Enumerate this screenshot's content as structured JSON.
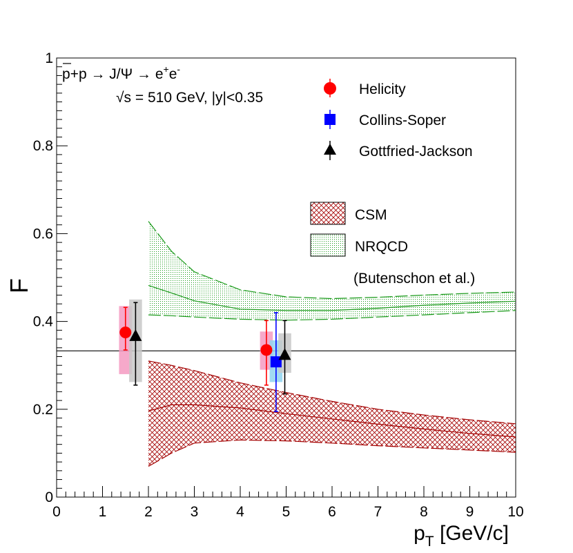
{
  "chart_data": {
    "type": "scatter",
    "xlabel": "p",
    "xlabel_sub": "T",
    "xlabel_unit": "[GeV/c]",
    "ylabel": "F",
    "xlim": [
      0,
      10
    ],
    "ylim": [
      0,
      1
    ],
    "x_ticks": [
      "0",
      "1",
      "2",
      "3",
      "4",
      "5",
      "6",
      "7",
      "8",
      "9",
      "10"
    ],
    "y_ticks": [
      {
        "v": 0,
        "label": "0"
      },
      {
        "v": 0.2,
        "label": "0.2"
      },
      {
        "v": 0.4,
        "label": "0.4"
      },
      {
        "v": 0.6,
        "label": "0.6"
      },
      {
        "v": 0.8,
        "label": "0.8"
      },
      {
        "v": 1,
        "label": "1"
      }
    ],
    "reference_line": 0.333,
    "process": {
      "reaction_pre": "p+p → J/Ψ → e",
      "sup1": "+",
      "e2": "e",
      "sup2": "-"
    },
    "energy_text": "√s = 510 GeV, |y|<0.35",
    "series": [
      {
        "name": "Helicity",
        "color": "#ff0000",
        "box_color": "#f49ac1",
        "marker": "circle",
        "points": [
          {
            "x": 1.5,
            "y": 0.375,
            "err_lo": 0.335,
            "err_hi": 0.432,
            "sys_lo": 0.28,
            "sys_hi": 0.435
          },
          {
            "x": 4.57,
            "y": 0.335,
            "err_lo": 0.255,
            "err_hi": 0.402,
            "sys_lo": 0.29,
            "sys_hi": 0.377
          }
        ]
      },
      {
        "name": "Collins-Soper",
        "color": "#0000ff",
        "box_color": "#8fd3f0",
        "marker": "square",
        "points": [
          {
            "x": 4.78,
            "y": 0.308,
            "err_lo": 0.195,
            "err_hi": 0.42,
            "sys_lo": 0.262,
            "sys_hi": 0.357
          }
        ]
      },
      {
        "name": "Gottfried-Jackson",
        "color": "#000000",
        "box_color": "#c8c8c8",
        "marker": "triangle",
        "points": [
          {
            "x": 1.72,
            "y": 0.365,
            "err_lo": 0.255,
            "err_hi": 0.443,
            "sys_lo": 0.262,
            "sys_hi": 0.45
          },
          {
            "x": 4.97,
            "y": 0.322,
            "err_lo": 0.235,
            "err_hi": 0.402,
            "sys_lo": 0.283,
            "sys_hi": 0.373
          }
        ]
      }
    ],
    "bands": [
      {
        "name": "CSM",
        "color": "#a30000",
        "x": [
          2,
          2.5,
          3,
          4,
          5,
          6,
          7,
          8,
          9,
          10
        ],
        "upper": [
          0.31,
          0.3,
          0.288,
          0.26,
          0.238,
          0.218,
          0.2,
          0.187,
          0.176,
          0.167
        ],
        "central": [
          0.196,
          0.21,
          0.21,
          0.203,
          0.19,
          0.178,
          0.166,
          0.155,
          0.145,
          0.137
        ],
        "lower": [
          0.07,
          0.1,
          0.123,
          0.13,
          0.128,
          0.123,
          0.117,
          0.112,
          0.107,
          0.102
        ]
      },
      {
        "name": "NRQCD",
        "color": "#199919",
        "x": [
          2,
          2.5,
          3,
          4,
          5,
          6,
          7,
          8,
          9,
          10
        ],
        "upper": [
          0.628,
          0.56,
          0.513,
          0.472,
          0.456,
          0.452,
          0.455,
          0.46,
          0.464,
          0.467
        ],
        "central": [
          0.482,
          0.465,
          0.447,
          0.428,
          0.425,
          0.425,
          0.43,
          0.437,
          0.442,
          0.446
        ],
        "lower": [
          0.415,
          0.413,
          0.41,
          0.405,
          0.403,
          0.405,
          0.41,
          0.415,
          0.42,
          0.425
        ]
      }
    ],
    "legend_markers": [
      "Helicity",
      "Collins-Soper",
      "Gottfried-Jackson"
    ],
    "legend_bands": [
      "CSM",
      "NRQCD"
    ],
    "legend_note": "(Butenschon et al.)"
  }
}
